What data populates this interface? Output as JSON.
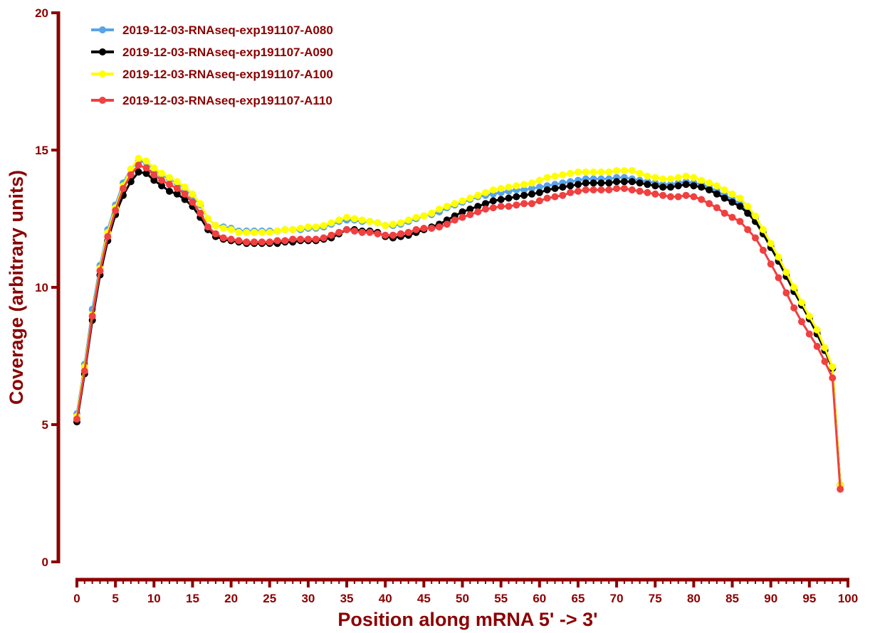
{
  "chart_data": {
    "type": "line",
    "xlabel": "Position along mRNA 5' -> 3'",
    "ylabel": "Coverage (arbitrary units)",
    "xlim": [
      0,
      100
    ],
    "ylim": [
      0,
      20
    ],
    "xticks": [
      0,
      5,
      10,
      15,
      20,
      25,
      30,
      35,
      40,
      45,
      50,
      55,
      60,
      65,
      70,
      75,
      80,
      85,
      90,
      95,
      100
    ],
    "yticks": [
      0,
      5,
      10,
      15,
      20
    ],
    "grid": false,
    "legend_position": "top-left",
    "axis_color": "#8b0000",
    "series": [
      {
        "name": "2019-12-03-RNAseq-exp191107-A080",
        "color": "#5aa3e8",
        "x": [
          0,
          1,
          2,
          3,
          4,
          5,
          6,
          7,
          8,
          9,
          10,
          11,
          12,
          13,
          14,
          15,
          16,
          17,
          18,
          19,
          20,
          21,
          22,
          23,
          24,
          25,
          26,
          27,
          28,
          29,
          30,
          31,
          32,
          33,
          34,
          35,
          36,
          37,
          38,
          39,
          40,
          41,
          42,
          43,
          44,
          45,
          46,
          47,
          48,
          49,
          50,
          51,
          52,
          53,
          54,
          55,
          56,
          57,
          58,
          59,
          60,
          61,
          62,
          63,
          64,
          65,
          66,
          67,
          68,
          69,
          70,
          71,
          72,
          73,
          74,
          75,
          76,
          77,
          78,
          79,
          80,
          81,
          82,
          83,
          84,
          85,
          86,
          87,
          88,
          89,
          90,
          91,
          92,
          93,
          94,
          95,
          96,
          97,
          98,
          99
        ],
        "y": [
          5.4,
          7.2,
          9.2,
          10.8,
          12.1,
          13.0,
          13.8,
          14.3,
          14.6,
          14.55,
          14.3,
          14.1,
          13.95,
          13.8,
          13.6,
          13.35,
          13.0,
          12.5,
          12.25,
          12.2,
          12.15,
          12.05,
          12.05,
          12.05,
          12.05,
          12.05,
          12.05,
          12.1,
          12.1,
          12.1,
          12.15,
          12.15,
          12.2,
          12.3,
          12.4,
          12.45,
          12.45,
          12.4,
          12.4,
          12.35,
          12.25,
          12.25,
          12.3,
          12.4,
          12.5,
          12.6,
          12.65,
          12.75,
          12.9,
          13.0,
          13.1,
          13.2,
          13.3,
          13.35,
          13.4,
          13.45,
          13.5,
          13.55,
          13.55,
          13.6,
          13.65,
          13.7,
          13.75,
          13.8,
          13.85,
          13.9,
          13.95,
          13.95,
          13.95,
          13.95,
          14.0,
          14.0,
          13.95,
          13.9,
          13.85,
          13.8,
          13.75,
          13.75,
          13.8,
          13.85,
          13.8,
          13.75,
          13.65,
          13.5,
          13.35,
          13.2,
          13.05,
          12.8,
          12.5,
          12.05,
          11.55,
          11.05,
          10.5,
          9.95,
          9.4,
          8.9,
          8.4,
          7.75,
          7.05,
          2.8
        ]
      },
      {
        "name": "2019-12-03-RNAseq-exp191107-A090",
        "color": "#000000",
        "x": [
          0,
          1,
          2,
          3,
          4,
          5,
          6,
          7,
          8,
          9,
          10,
          11,
          12,
          13,
          14,
          15,
          16,
          17,
          18,
          19,
          20,
          21,
          22,
          23,
          24,
          25,
          26,
          27,
          28,
          29,
          30,
          31,
          32,
          33,
          34,
          35,
          36,
          37,
          38,
          39,
          40,
          41,
          42,
          43,
          44,
          45,
          46,
          47,
          48,
          49,
          50,
          51,
          52,
          53,
          54,
          55,
          56,
          57,
          58,
          59,
          60,
          61,
          62,
          63,
          64,
          65,
          66,
          67,
          68,
          69,
          70,
          71,
          72,
          73,
          74,
          75,
          76,
          77,
          78,
          79,
          80,
          81,
          82,
          83,
          84,
          85,
          86,
          87,
          88,
          89,
          90,
          91,
          92,
          93,
          94,
          95,
          96,
          97,
          98,
          99
        ],
        "y": [
          5.1,
          6.85,
          8.8,
          10.45,
          11.7,
          12.65,
          13.35,
          13.85,
          14.2,
          14.15,
          13.9,
          13.7,
          13.5,
          13.4,
          13.2,
          12.95,
          12.55,
          12.1,
          11.85,
          11.75,
          11.7,
          11.65,
          11.6,
          11.6,
          11.6,
          11.6,
          11.6,
          11.65,
          11.65,
          11.7,
          11.7,
          11.7,
          11.75,
          11.8,
          11.95,
          12.1,
          12.1,
          12.05,
          12.05,
          12.0,
          11.85,
          11.8,
          11.85,
          11.9,
          12.0,
          12.1,
          12.2,
          12.3,
          12.45,
          12.6,
          12.75,
          12.85,
          12.95,
          13.05,
          13.15,
          13.2,
          13.25,
          13.3,
          13.35,
          13.4,
          13.45,
          13.55,
          13.6,
          13.65,
          13.7,
          13.75,
          13.8,
          13.8,
          13.8,
          13.8,
          13.85,
          13.85,
          13.85,
          13.8,
          13.75,
          13.7,
          13.65,
          13.65,
          13.7,
          13.75,
          13.7,
          13.65,
          13.55,
          13.4,
          13.25,
          13.1,
          12.95,
          12.7,
          12.4,
          11.95,
          11.45,
          10.95,
          10.4,
          9.85,
          9.35,
          8.85,
          8.3,
          7.7,
          7.05,
          2.8
        ]
      },
      {
        "name": "2019-12-03-RNAseq-exp191107-A100",
        "color": "#ffff00",
        "x": [
          0,
          1,
          2,
          3,
          4,
          5,
          6,
          7,
          8,
          9,
          10,
          11,
          12,
          13,
          14,
          15,
          16,
          17,
          18,
          19,
          20,
          21,
          22,
          23,
          24,
          25,
          26,
          27,
          28,
          29,
          30,
          31,
          32,
          33,
          34,
          35,
          36,
          37,
          38,
          39,
          40,
          41,
          42,
          43,
          44,
          45,
          46,
          47,
          48,
          49,
          50,
          51,
          52,
          53,
          54,
          55,
          56,
          57,
          58,
          59,
          60,
          61,
          62,
          63,
          64,
          65,
          66,
          67,
          68,
          69,
          70,
          71,
          72,
          73,
          74,
          75,
          76,
          77,
          78,
          79,
          80,
          81,
          82,
          83,
          84,
          85,
          86,
          87,
          88,
          89,
          90,
          91,
          92,
          93,
          94,
          95,
          96,
          97,
          98,
          99
        ],
        "y": [
          5.3,
          7.1,
          9.0,
          10.7,
          12.0,
          12.9,
          13.7,
          14.3,
          14.7,
          14.6,
          14.35,
          14.15,
          14.0,
          13.85,
          13.65,
          13.4,
          13.05,
          12.5,
          12.25,
          12.15,
          12.1,
          12.0,
          12.0,
          12.0,
          12.0,
          12.0,
          12.05,
          12.1,
          12.1,
          12.15,
          12.2,
          12.2,
          12.25,
          12.35,
          12.45,
          12.55,
          12.5,
          12.45,
          12.4,
          12.35,
          12.25,
          12.3,
          12.35,
          12.45,
          12.55,
          12.6,
          12.7,
          12.85,
          12.95,
          13.05,
          13.15,
          13.25,
          13.35,
          13.45,
          13.55,
          13.6,
          13.65,
          13.7,
          13.75,
          13.8,
          13.9,
          14.0,
          14.05,
          14.1,
          14.15,
          14.2,
          14.2,
          14.2,
          14.2,
          14.2,
          14.25,
          14.25,
          14.25,
          14.15,
          14.05,
          14.0,
          13.95,
          13.95,
          14.0,
          14.05,
          14.0,
          13.9,
          13.8,
          13.7,
          13.55,
          13.4,
          13.25,
          12.95,
          12.6,
          12.1,
          11.6,
          11.1,
          10.55,
          10.0,
          9.45,
          8.95,
          8.45,
          7.8,
          7.1,
          2.8
        ]
      },
      {
        "name": "2019-12-03-RNAseq-exp191107-A110",
        "color": "#f04040",
        "x": [
          0,
          1,
          2,
          3,
          4,
          5,
          6,
          7,
          8,
          9,
          10,
          11,
          12,
          13,
          14,
          15,
          16,
          17,
          18,
          19,
          20,
          21,
          22,
          23,
          24,
          25,
          26,
          27,
          28,
          29,
          30,
          31,
          32,
          33,
          34,
          35,
          36,
          37,
          38,
          39,
          40,
          41,
          42,
          43,
          44,
          45,
          46,
          47,
          48,
          49,
          50,
          51,
          52,
          53,
          54,
          55,
          56,
          57,
          58,
          59,
          60,
          61,
          62,
          63,
          64,
          65,
          66,
          67,
          68,
          69,
          70,
          71,
          72,
          73,
          74,
          75,
          76,
          77,
          78,
          79,
          80,
          81,
          82,
          83,
          84,
          85,
          86,
          87,
          88,
          89,
          90,
          91,
          92,
          93,
          94,
          95,
          96,
          97,
          98,
          99
        ],
        "y": [
          5.2,
          6.95,
          8.95,
          10.6,
          11.85,
          12.8,
          13.6,
          14.1,
          14.45,
          14.35,
          14.1,
          13.9,
          13.75,
          13.6,
          13.4,
          13.1,
          12.7,
          12.2,
          11.95,
          11.8,
          11.75,
          11.7,
          11.65,
          11.65,
          11.65,
          11.65,
          11.7,
          11.7,
          11.75,
          11.75,
          11.75,
          11.75,
          11.8,
          11.9,
          12.0,
          12.1,
          12.05,
          12.0,
          12.0,
          11.95,
          11.9,
          11.9,
          11.95,
          12.0,
          12.1,
          12.15,
          12.15,
          12.2,
          12.3,
          12.45,
          12.55,
          12.65,
          12.75,
          12.85,
          12.9,
          12.95,
          12.95,
          13.0,
          13.05,
          13.05,
          13.15,
          13.25,
          13.3,
          13.35,
          13.45,
          13.5,
          13.55,
          13.55,
          13.55,
          13.55,
          13.6,
          13.6,
          13.55,
          13.5,
          13.45,
          13.4,
          13.35,
          13.3,
          13.3,
          13.35,
          13.3,
          13.2,
          13.05,
          12.9,
          12.7,
          12.55,
          12.4,
          12.1,
          11.8,
          11.35,
          10.85,
          10.35,
          9.8,
          9.25,
          8.75,
          8.3,
          7.85,
          7.3,
          6.7,
          2.65
        ]
      }
    ]
  }
}
